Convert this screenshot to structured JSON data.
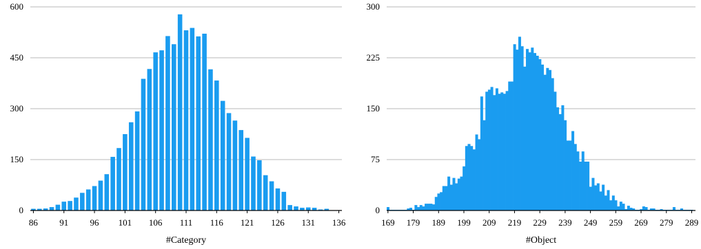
{
  "colors": {
    "bar": "#1a9cf0",
    "grid": "#b8b8b8",
    "axis": "#000000",
    "background": "#ffffff"
  },
  "chart_data": [
    {
      "type": "bar",
      "title": "",
      "xlabel": "#Category",
      "ylabel": "",
      "ylim": [
        0,
        600
      ],
      "yticks": [
        0,
        150,
        300,
        450,
        600
      ],
      "xticks": [
        86,
        91,
        96,
        101,
        106,
        111,
        116,
        121,
        126,
        131,
        136
      ],
      "xlim": [
        85.5,
        136.5
      ],
      "grid": "horizontal",
      "x": [
        86,
        87,
        88,
        89,
        90,
        91,
        92,
        93,
        94,
        95,
        96,
        97,
        98,
        99,
        100,
        101,
        102,
        103,
        104,
        105,
        106,
        107,
        108,
        109,
        110,
        111,
        112,
        113,
        114,
        115,
        116,
        117,
        118,
        119,
        120,
        121,
        122,
        123,
        124,
        125,
        126,
        127,
        128,
        129,
        130,
        131,
        132,
        133,
        134,
        135
      ],
      "values": [
        5,
        5,
        6,
        10,
        17,
        26,
        28,
        38,
        52,
        62,
        72,
        88,
        107,
        158,
        184,
        225,
        260,
        292,
        388,
        417,
        466,
        472,
        514,
        490,
        578,
        531,
        538,
        513,
        521,
        416,
        383,
        323,
        287,
        265,
        237,
        214,
        159,
        148,
        104,
        86,
        65,
        55,
        16,
        12,
        8,
        9,
        8,
        3,
        5,
        1
      ]
    },
    {
      "type": "bar",
      "title": "",
      "xlabel": "#Object",
      "ylabel": "",
      "ylim": [
        0,
        300
      ],
      "yticks": [
        0,
        75,
        150,
        225,
        300
      ],
      "xticks": [
        169,
        179,
        189,
        199,
        209,
        219,
        229,
        239,
        249,
        259,
        269,
        279,
        289
      ],
      "xlim": [
        168.5,
        290.5
      ],
      "grid": "horizontal",
      "x": [
        169,
        170,
        171,
        172,
        173,
        174,
        175,
        176,
        177,
        178,
        179,
        180,
        181,
        182,
        183,
        184,
        185,
        186,
        187,
        188,
        189,
        190,
        191,
        192,
        193,
        194,
        195,
        196,
        197,
        198,
        199,
        200,
        201,
        202,
        203,
        204,
        205,
        206,
        207,
        208,
        209,
        210,
        211,
        212,
        213,
        214,
        215,
        216,
        217,
        218,
        219,
        220,
        221,
        222,
        223,
        224,
        225,
        226,
        227,
        228,
        229,
        230,
        231,
        232,
        233,
        234,
        235,
        236,
        237,
        238,
        239,
        240,
        241,
        242,
        243,
        244,
        245,
        246,
        247,
        248,
        249,
        250,
        251,
        252,
        253,
        254,
        255,
        256,
        257,
        258,
        259,
        260,
        261,
        262,
        263,
        264,
        265,
        266,
        267,
        268,
        269,
        270,
        271,
        272,
        273,
        274,
        275,
        276,
        277,
        278,
        279,
        280,
        281,
        282,
        283,
        284,
        285,
        286,
        287,
        288,
        289,
        290
      ],
      "values": [
        5,
        1,
        1,
        1,
        1,
        1,
        1,
        1,
        3,
        4,
        1,
        8,
        5,
        8,
        6,
        10,
        10,
        10,
        9,
        20,
        25,
        27,
        36,
        36,
        50,
        38,
        48,
        40,
        47,
        50,
        65,
        95,
        98,
        95,
        90,
        112,
        105,
        168,
        133,
        175,
        178,
        182,
        170,
        180,
        172,
        174,
        172,
        176,
        190,
        190,
        245,
        237,
        256,
        242,
        212,
        238,
        233,
        240,
        232,
        228,
        223,
        215,
        200,
        210,
        207,
        195,
        175,
        152,
        142,
        155,
        133,
        103,
        103,
        117,
        98,
        87,
        72,
        87,
        72,
        72,
        35,
        48,
        37,
        40,
        28,
        38,
        22,
        30,
        15,
        22,
        15,
        6,
        13,
        10,
        2,
        7,
        4,
        3,
        1,
        1,
        2,
        6,
        5,
        1,
        3,
        3,
        1,
        1,
        2,
        1,
        1,
        1,
        1,
        5,
        1,
        1,
        3,
        1,
        1,
        1,
        1,
        0
      ]
    }
  ]
}
